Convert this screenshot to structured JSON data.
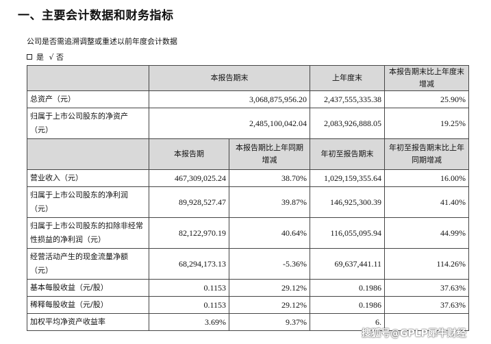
{
  "heading": "一、主要会计数据和财务指标",
  "question": "公司是否需追溯调整或重述以前年度会计数据",
  "options": {
    "yes": "是",
    "check": "√",
    "no": "否"
  },
  "table1": {
    "headers": [
      "本报告期末",
      "上年度末",
      "本报告期末比上年度末增减"
    ],
    "rows": [
      {
        "label": "总资产（元）",
        "cells": [
          "3,068,875,956.20",
          "2,437,555,335.38",
          "25.90%"
        ]
      },
      {
        "label": "归属于上市公司股东的净资产（元）",
        "cells": [
          "2,485,100,042.04",
          "2,083,926,888.05",
          "19.25%"
        ]
      }
    ]
  },
  "table2": {
    "headers": [
      "本报告期",
      "本报告期比上年同期增减",
      "年初至报告期末",
      "年初至报告期末比上年同期增减"
    ],
    "rows": [
      {
        "label": "营业收入（元）",
        "cells": [
          "467,309,025.24",
          "38.70%",
          "1,029,159,355.64",
          "16.00%"
        ]
      },
      {
        "label": "归属于上市公司股东的净利润（元）",
        "cells": [
          "89,928,527.47",
          "39.87%",
          "146,925,300.39",
          "41.40%"
        ]
      },
      {
        "label": "归属于上市公司股东的扣除非经常性损益的净利润（元）",
        "cells": [
          "82,122,970.19",
          "40.64%",
          "116,055,095.94",
          "44.99%"
        ]
      },
      {
        "label": "经营活动产生的现金流量净额（元）",
        "cells": [
          "68,294,173.13",
          "-5.36%",
          "69,637,441.11",
          "114.26%"
        ]
      },
      {
        "label": "基本每股收益（元/股）",
        "cells": [
          "0.1153",
          "29.12%",
          "0.1986",
          "37.63%"
        ]
      },
      {
        "label": "稀释每股收益（元/股）",
        "cells": [
          "0.1153",
          "29.12%",
          "0.1986",
          "37.63%"
        ]
      },
      {
        "label": "加权平均净资产收益率",
        "cells": [
          "3.69%",
          "9.37%",
          "6.",
          ""
        ]
      }
    ]
  },
  "watermark": "搜狐号@GPLP犀牛财经"
}
